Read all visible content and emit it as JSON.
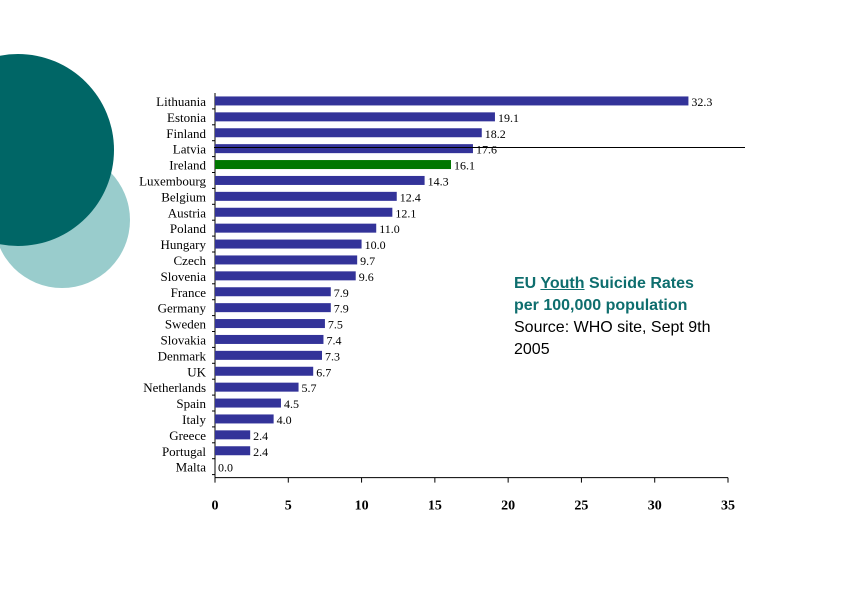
{
  "decoration": {
    "dark_color": "#006666",
    "light_color": "#99cccc"
  },
  "caption": {
    "line1_prefix": "EU",
    "line1_youth": "Youth",
    "line1_suffix": "Suicide Rates",
    "line2": "per 100,000 population",
    "source_line1": "Source: WHO site, Sept 9th",
    "source_line2": "2005"
  },
  "chart_data": {
    "type": "bar",
    "orientation": "horizontal",
    "categories": [
      "Lithuania",
      "Estonia",
      "Finland",
      "Latvia",
      "Ireland",
      "Luxembourg",
      "Belgium",
      "Austria",
      "Poland",
      "Hungary",
      "Czech",
      "Slovenia",
      "France",
      "Germany",
      "Sweden",
      "Slovakia",
      "Denmark",
      "UK",
      "Netherlands",
      "Spain",
      "Italy",
      "Greece",
      "Portugal",
      "Malta"
    ],
    "values": [
      32.3,
      19.1,
      18.2,
      17.6,
      16.1,
      14.3,
      12.4,
      12.1,
      11.0,
      10.0,
      9.7,
      9.6,
      7.9,
      7.9,
      7.5,
      7.4,
      7.3,
      6.7,
      5.7,
      4.5,
      4.0,
      2.4,
      2.4,
      0.0
    ],
    "value_labels": [
      "32.3",
      "19.1",
      "18.2",
      "17.6",
      "16.1",
      "14.3",
      "12.4",
      "12.1",
      "11.0",
      "10.0",
      "9.7",
      "9.6",
      "7.9",
      "7.9",
      "7.5",
      "7.4",
      "7.3",
      "6.7",
      "5.7",
      "4.5",
      "4.0",
      "2.4",
      "2.4",
      "0.0"
    ],
    "xlim": [
      0,
      35
    ],
    "xticks": [
      "0",
      "5",
      "10",
      "15",
      "20",
      "25",
      "30",
      "35"
    ],
    "bar_color": "#333399",
    "highlight_category": "Ireland",
    "highlight_color": "#007700",
    "grid": false
  }
}
